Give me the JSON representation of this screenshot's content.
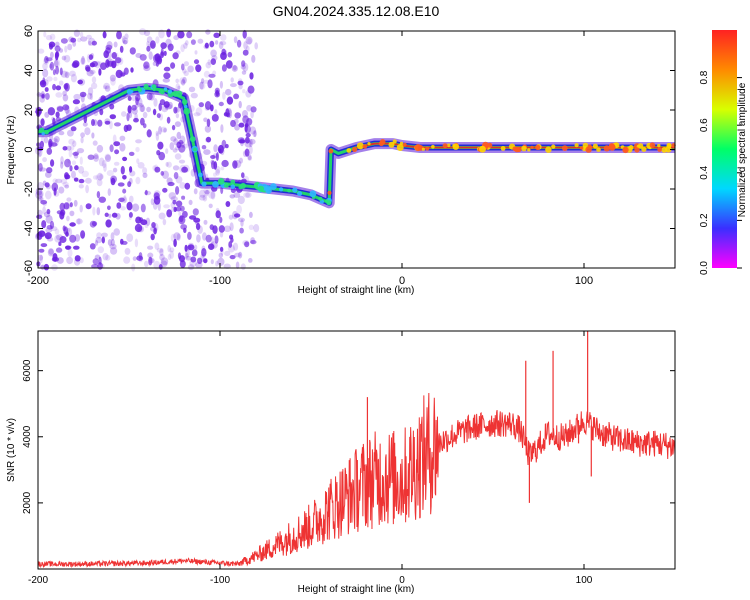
{
  "title": "GN04.2024.335.12.08.E10",
  "colors": {
    "snr_line": "#ee3333",
    "ridge": "#e0302a",
    "speckle": "#6a1fe0",
    "colorbar": [
      "#ff00ff",
      "#3a2fff",
      "#00d8ff",
      "#00ff66",
      "#d8ff00",
      "#ff8a00",
      "#ff2222"
    ]
  },
  "chart_data": [
    {
      "type": "heatmap",
      "title": "GN04.2024.335.12.08.E10",
      "xlabel": "Height of straight line (km)",
      "ylabel": "Frequency (Hz)",
      "xlim": [
        -200,
        150
      ],
      "ylim": [
        -60,
        60
      ],
      "xticks": [
        -200,
        -100,
        0,
        100
      ],
      "yticks": [
        -60,
        -40,
        -20,
        0,
        20,
        40,
        60
      ],
      "colorbar": {
        "label": "Normalized spectral amplitude",
        "range": [
          0,
          1
        ],
        "ticks": [
          "0.0",
          "0.2",
          "0.4",
          "0.6",
          "0.8"
        ]
      },
      "ridge": {
        "x": [
          -200,
          -195,
          -150,
          -140,
          -130,
          -120,
          -110,
          -100,
          -90,
          -80,
          -70,
          -60,
          -50,
          -45,
          -40,
          -39,
          -35,
          -25,
          -15,
          -5,
          0,
          10,
          30,
          60,
          100,
          150
        ],
        "y": [
          9,
          9,
          30,
          31,
          30,
          26,
          -17,
          -17,
          -18,
          -19,
          -20,
          -21,
          -23,
          -25,
          -27,
          0,
          -2,
          1,
          3,
          3,
          2,
          1,
          1,
          1,
          1,
          1
        ]
      },
      "speckle_region": {
        "x": [
          -200,
          -80
        ],
        "y": [
          -60,
          60
        ]
      }
    },
    {
      "type": "line",
      "xlabel": "Height of straight line (km)",
      "ylabel": "SNR (10 * v/v)",
      "xlim": [
        -200,
        150
      ],
      "ylim": [
        0,
        7200
      ],
      "xticks": [
        -200,
        -100,
        0,
        100
      ],
      "yticks": [
        2000,
        4000,
        6000
      ],
      "series": [
        {
          "x": [
            -200,
            -180,
            -160,
            -140,
            -120,
            -100,
            -90,
            -80,
            -70,
            -60,
            -50,
            -40,
            -30,
            -20,
            -10,
            0,
            10,
            20,
            30,
            40,
            50,
            60,
            65,
            70,
            75,
            80,
            85,
            90,
            100,
            110,
            120,
            130,
            140,
            150
          ],
          "y": [
            150,
            150,
            160,
            180,
            250,
            180,
            150,
            400,
            700,
            1000,
            1300,
            1800,
            2200,
            2600,
            2800,
            2700,
            3300,
            3800,
            4100,
            4300,
            4400,
            4400,
            4200,
            3400,
            3700,
            4100,
            4000,
            4000,
            4500,
            4100,
            3900,
            3800,
            3800,
            3700
          ]
        }
      ],
      "spikes": [
        {
          "x": -19,
          "y": 5200
        },
        {
          "x": -13,
          "y": 3300
        },
        {
          "x": 68,
          "y": 6300
        },
        {
          "x": 70,
          "y": 2000
        },
        {
          "x": 83,
          "y": 6600
        },
        {
          "x": 97,
          "y": 3800
        },
        {
          "x": 102,
          "y": 7200
        },
        {
          "x": 104,
          "y": 2800
        }
      ]
    }
  ]
}
